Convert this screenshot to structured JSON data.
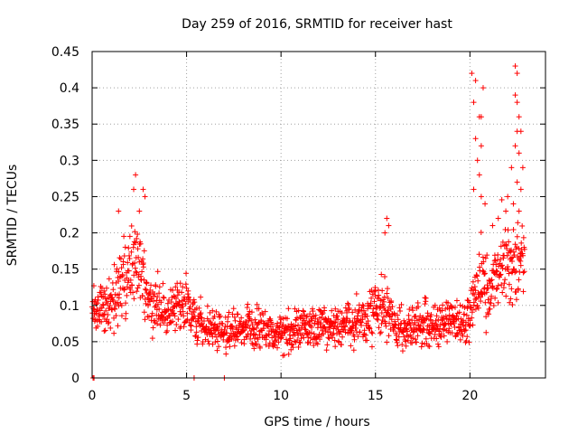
{
  "chart_data": {
    "type": "scatter",
    "title": "Day 259 of 2016, SRMTID for receiver hast",
    "xlabel": "GPS time / hours",
    "ylabel": "SRMTID / TECUs",
    "xlim": [
      0,
      24
    ],
    "ylim": [
      0,
      0.45
    ],
    "xticks": [
      0,
      5,
      10,
      15,
      20
    ],
    "xtick_labels": [
      "0",
      "5",
      "10",
      "15",
      "20"
    ],
    "yticks": [
      0,
      0.05,
      0.1,
      0.15,
      0.2,
      0.25,
      0.3,
      0.35,
      0.4,
      0.45
    ],
    "ytick_labels": [
      "0",
      "0.05",
      "0.1",
      "0.15",
      "0.2",
      "0.25",
      "0.3",
      "0.35",
      "0.4",
      "0.45"
    ],
    "grid": true,
    "marker": "plus",
    "series_color": "#ff0000",
    "outliers": [
      {
        "x": 0.05,
        "y": 0.0
      },
      {
        "x": 0.1,
        "y": 0.0
      },
      {
        "x": 5.4,
        "y": 0.0
      },
      {
        "x": 7.0,
        "y": 0.0
      },
      {
        "x": 2.3,
        "y": 0.28
      },
      {
        "x": 2.2,
        "y": 0.26
      },
      {
        "x": 2.7,
        "y": 0.26
      },
      {
        "x": 2.8,
        "y": 0.25
      },
      {
        "x": 2.5,
        "y": 0.23
      },
      {
        "x": 1.4,
        "y": 0.23
      },
      {
        "x": 15.6,
        "y": 0.22
      },
      {
        "x": 15.7,
        "y": 0.21
      },
      {
        "x": 15.5,
        "y": 0.2
      },
      {
        "x": 20.1,
        "y": 0.42
      },
      {
        "x": 20.3,
        "y": 0.41
      },
      {
        "x": 20.7,
        "y": 0.4
      },
      {
        "x": 20.2,
        "y": 0.38
      },
      {
        "x": 20.5,
        "y": 0.36
      },
      {
        "x": 20.6,
        "y": 0.36
      },
      {
        "x": 20.3,
        "y": 0.33
      },
      {
        "x": 20.6,
        "y": 0.32
      },
      {
        "x": 20.4,
        "y": 0.3
      },
      {
        "x": 20.5,
        "y": 0.28
      },
      {
        "x": 20.2,
        "y": 0.26
      },
      {
        "x": 20.6,
        "y": 0.25
      },
      {
        "x": 20.8,
        "y": 0.24
      },
      {
        "x": 22.4,
        "y": 0.43
      },
      {
        "x": 22.5,
        "y": 0.42
      },
      {
        "x": 22.4,
        "y": 0.39
      },
      {
        "x": 22.5,
        "y": 0.38
      },
      {
        "x": 22.6,
        "y": 0.36
      },
      {
        "x": 22.5,
        "y": 0.34
      },
      {
        "x": 22.7,
        "y": 0.34
      },
      {
        "x": 22.4,
        "y": 0.32
      },
      {
        "x": 22.6,
        "y": 0.31
      },
      {
        "x": 22.8,
        "y": 0.29
      },
      {
        "x": 22.2,
        "y": 0.29
      },
      {
        "x": 22.5,
        "y": 0.27
      },
      {
        "x": 22.7,
        "y": 0.26
      },
      {
        "x": 22.0,
        "y": 0.25
      },
      {
        "x": 22.3,
        "y": 0.24
      },
      {
        "x": 21.9,
        "y": 0.23
      },
      {
        "x": 22.6,
        "y": 0.23
      },
      {
        "x": 21.5,
        "y": 0.22
      },
      {
        "x": 21.2,
        "y": 0.21
      }
    ],
    "trend": [
      {
        "x": 0.0,
        "y": 0.085,
        "spread": 0.025
      },
      {
        "x": 0.5,
        "y": 0.09,
        "spread": 0.03
      },
      {
        "x": 1.0,
        "y": 0.1,
        "spread": 0.035
      },
      {
        "x": 1.5,
        "y": 0.13,
        "spread": 0.04
      },
      {
        "x": 2.0,
        "y": 0.15,
        "spread": 0.045
      },
      {
        "x": 2.5,
        "y": 0.15,
        "spread": 0.045
      },
      {
        "x": 3.0,
        "y": 0.1,
        "spread": 0.03
      },
      {
        "x": 3.5,
        "y": 0.095,
        "spread": 0.03
      },
      {
        "x": 4.0,
        "y": 0.09,
        "spread": 0.028
      },
      {
        "x": 4.5,
        "y": 0.1,
        "spread": 0.03
      },
      {
        "x": 5.0,
        "y": 0.1,
        "spread": 0.03
      },
      {
        "x": 5.5,
        "y": 0.075,
        "spread": 0.025
      },
      {
        "x": 6.0,
        "y": 0.065,
        "spread": 0.022
      },
      {
        "x": 7.0,
        "y": 0.065,
        "spread": 0.022
      },
      {
        "x": 8.0,
        "y": 0.07,
        "spread": 0.025
      },
      {
        "x": 9.0,
        "y": 0.068,
        "spread": 0.025
      },
      {
        "x": 10.0,
        "y": 0.06,
        "spread": 0.022
      },
      {
        "x": 11.0,
        "y": 0.065,
        "spread": 0.025
      },
      {
        "x": 12.0,
        "y": 0.072,
        "spread": 0.025
      },
      {
        "x": 13.0,
        "y": 0.07,
        "spread": 0.025
      },
      {
        "x": 14.0,
        "y": 0.075,
        "spread": 0.025
      },
      {
        "x": 14.8,
        "y": 0.085,
        "spread": 0.028
      },
      {
        "x": 15.3,
        "y": 0.1,
        "spread": 0.035
      },
      {
        "x": 15.8,
        "y": 0.08,
        "spread": 0.028
      },
      {
        "x": 16.5,
        "y": 0.065,
        "spread": 0.025
      },
      {
        "x": 17.5,
        "y": 0.075,
        "spread": 0.025
      },
      {
        "x": 18.5,
        "y": 0.07,
        "spread": 0.025
      },
      {
        "x": 19.5,
        "y": 0.075,
        "spread": 0.025
      },
      {
        "x": 20.0,
        "y": 0.085,
        "spread": 0.03
      },
      {
        "x": 20.5,
        "y": 0.14,
        "spread": 0.05
      },
      {
        "x": 21.0,
        "y": 0.12,
        "spread": 0.04
      },
      {
        "x": 21.5,
        "y": 0.14,
        "spread": 0.045
      },
      {
        "x": 22.0,
        "y": 0.15,
        "spread": 0.05
      },
      {
        "x": 22.5,
        "y": 0.16,
        "spread": 0.05
      },
      {
        "x": 22.9,
        "y": 0.16,
        "spread": 0.05
      }
    ],
    "n_points": 1500
  }
}
